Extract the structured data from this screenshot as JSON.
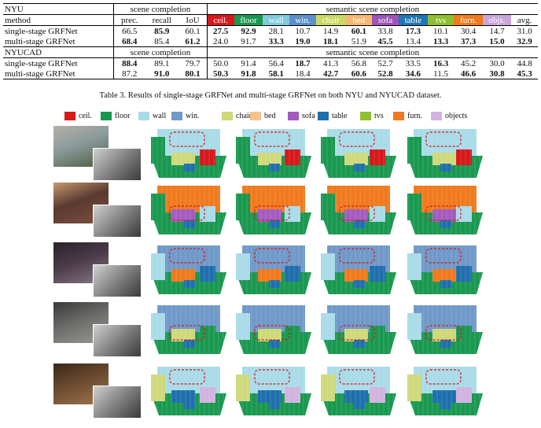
{
  "table": {
    "nyu_label": "NYU",
    "nyucad_label": "NYUCAD",
    "method_header": "method",
    "scene_completion_header": "scene completion",
    "semantic_header": "semantic scene completion",
    "sc_cols": [
      "prec.",
      "recall",
      "IoU"
    ],
    "classes": [
      {
        "label": "ceil.",
        "color": "#d7191c"
      },
      {
        "label": "floor",
        "color": "#1a9850"
      },
      {
        "label": "wall",
        "color": "#7fcbd9"
      },
      {
        "label": "win.",
        "color": "#5b8fc9"
      },
      {
        "label": "chair",
        "color": "#c9d965"
      },
      {
        "label": "bed",
        "color": "#f5b772"
      },
      {
        "label": "sofa",
        "color": "#9e55b8"
      },
      {
        "label": "table",
        "color": "#1f78b4"
      },
      {
        "label": "tvs",
        "color": "#8fbf2f"
      },
      {
        "label": "furn.",
        "color": "#f07a1e"
      },
      {
        "label": "objs.",
        "color": "#c9a8d9"
      }
    ],
    "avg_header": "avg.",
    "nyu_rows": [
      {
        "method": "single-stage GRFNet",
        "values": [
          "66.5",
          "85.9",
          "60.1",
          "27.5",
          "92.9",
          "28.1",
          "10.7",
          "14.9",
          "60.1",
          "33.8",
          "17.3",
          "10.1",
          "30.4",
          "14.7",
          "31.0"
        ],
        "bold": [
          false,
          true,
          false,
          true,
          true,
          false,
          false,
          false,
          true,
          false,
          true,
          false,
          false,
          false,
          false
        ]
      },
      {
        "method": "multi-stage GRFNet",
        "values": [
          "68.4",
          "85.4",
          "61.2",
          "24.0",
          "91.7",
          "33.3",
          "19.0",
          "18.1",
          "51.9",
          "45.5",
          "13.4",
          "13.3",
          "37.3",
          "15.0",
          "32.9"
        ],
        "bold": [
          true,
          false,
          true,
          false,
          false,
          true,
          true,
          true,
          false,
          true,
          false,
          true,
          true,
          true,
          true
        ]
      }
    ],
    "nyucad_rows": [
      {
        "method": "single-stage GRFNet",
        "values": [
          "88.4",
          "89.1",
          "79.7",
          "50.0",
          "91.4",
          "56.4",
          "18.7",
          "41.3",
          "56.8",
          "52.7",
          "33.5",
          "16.3",
          "45.2",
          "30.0",
          "44.8"
        ],
        "bold": [
          true,
          false,
          false,
          false,
          false,
          false,
          true,
          false,
          false,
          false,
          false,
          true,
          false,
          false,
          false
        ]
      },
      {
        "method": "multi-stage GRFNet",
        "values": [
          "87.2",
          "91.0",
          "80.1",
          "50.3",
          "91.8",
          "58.1",
          "18.4",
          "42.7",
          "60.6",
          "52.8",
          "34.6",
          "11.5",
          "46.6",
          "30.8",
          "45.3"
        ],
        "bold": [
          false,
          true,
          true,
          true,
          true,
          true,
          false,
          true,
          true,
          true,
          true,
          false,
          true,
          true,
          true
        ]
      }
    ]
  },
  "caption": "Table 3. Results of single-stage GRFNet and multi-stage GRFNet on both NYU and NYUCAD dataset.",
  "legend": [
    {
      "label": "ceil.",
      "color": "#d7191c"
    },
    {
      "label": "floor",
      "color": "#1a9850"
    },
    {
      "label": "wall",
      "color": "#a9dbe8"
    },
    {
      "label": "win.",
      "color": "#6f99c9"
    },
    {
      "label": "chair",
      "color": "#cfd97a"
    },
    {
      "label": "bed",
      "color": "#f5c38a"
    },
    {
      "label": "sofa",
      "color": "#a45bc0"
    },
    {
      "label": "table",
      "color": "#1f6fae"
    },
    {
      "label": "tvs",
      "color": "#8fbf2f"
    },
    {
      "label": "furn.",
      "color": "#f07a1e"
    },
    {
      "label": "objects",
      "color": "#d2b3e0"
    }
  ]
}
